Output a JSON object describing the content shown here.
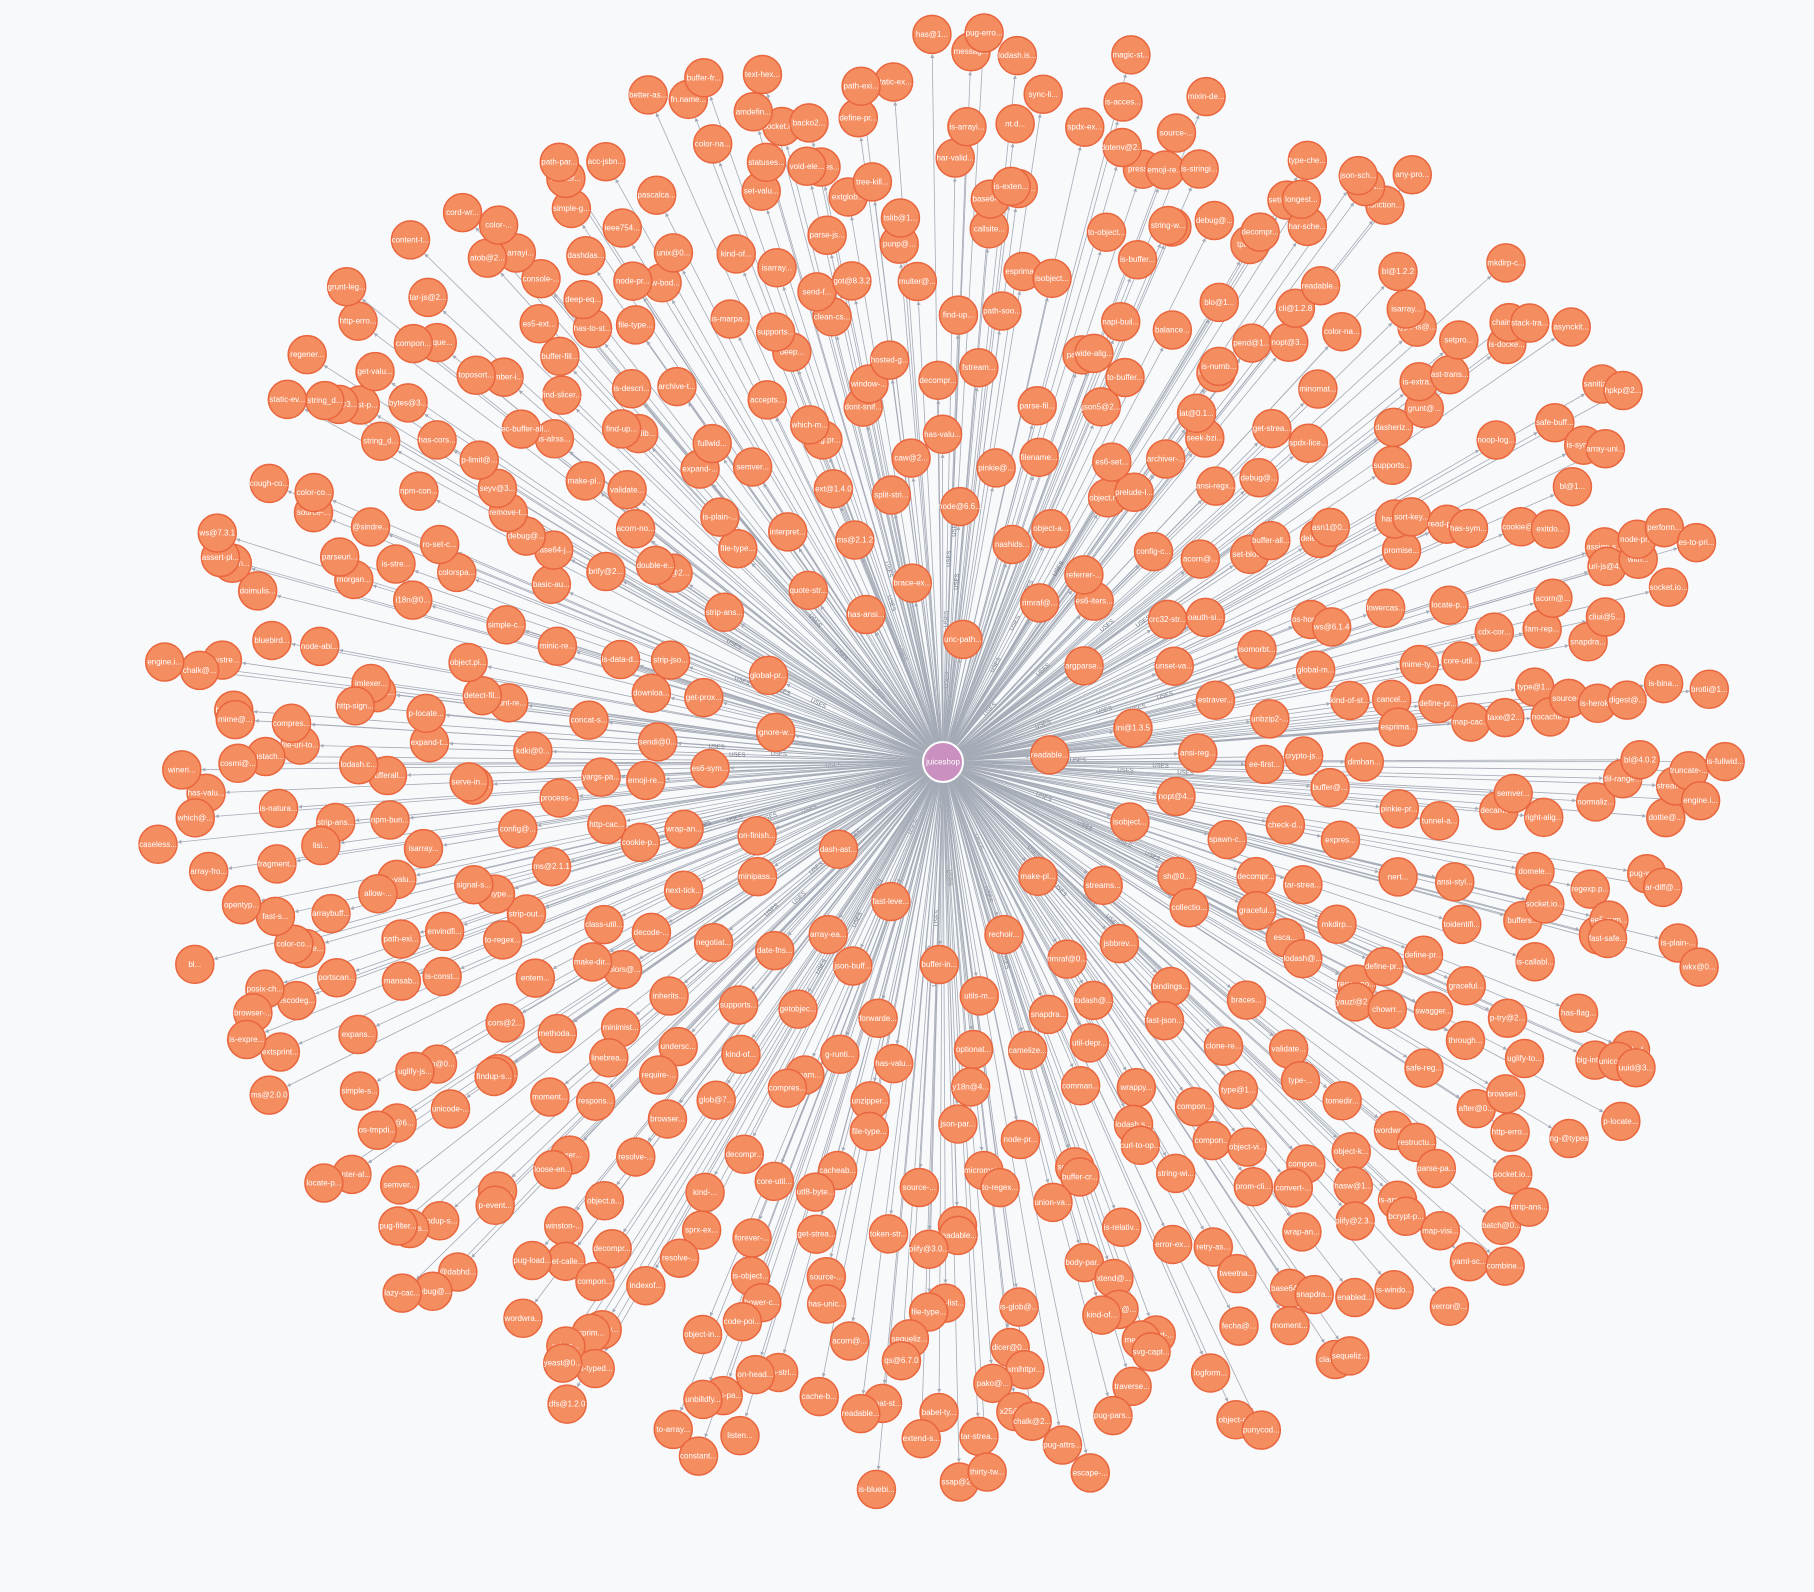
{
  "graph": {
    "root": {
      "label": "juiceshop",
      "color": "#c990c0"
    },
    "node_color": "#f48d60",
    "node_stroke": "#e9663e",
    "edge_color": "#a5abb6",
    "edge_label": "USES",
    "nodes": [
      "readable...",
      "dash-ast...",
      "unc-path...",
      "make-pl...",
      "ignore-w...",
      "argparse...",
      "fast-leve...",
      "has-ansi...",
      "isobject...",
      "on-finish...",
      "rimraf@...",
      "rechoir...",
      "global-pr...",
      "ini@1.3.5",
      "array-ea...",
      "brace-ex...",
      "streams...",
      "es6-sym...",
      "es6-iters...",
      "buffer-in...",
      "quote-str...",
      "nopt@4...",
      "minipass...",
      "nashids...",
      "rimraf@0...",
      "get-prox...",
      "unset-va...",
      "json-buff...",
      "ms@2.1.2",
      "sh@0...",
      "wrap-an...",
      "referrer-...",
      "utils-m...",
      "strip-ans...",
      "ansi-reg...",
      "date-fns...",
      "node@6.6...",
      "jsbbrev...",
      "sendi@0...",
      "crc32-str...",
      "forwarde...",
      "interpret...",
      "spawn-c...",
      "next-tick...",
      "object-a...",
      "snapdra...",
      "strip-jso...",
      "estraver...",
      "getobjec...",
      "split-stri...",
      "collectio...",
      "emoji-re...",
      "config-c...",
      "optionat...",
      "file-type...",
      "ee-first...",
      "negotiat...",
      "pinkie@...",
      "lodash@...",
      "downloa...",
      "oauth-si...",
      "g-runti...",
      "ext@1.4.0",
      "decompr...",
      "cookie-p...",
      "object.m...",
      "camelize...",
      "nan@2...",
      "unbzip2-...",
      "supports...",
      "caw@2...",
      "bindings...",
      "yargs-pa...",
      "acorn@...",
      "has-valu...",
      "is-plain-...",
      "check-d...",
      "decode-...",
      "filename...",
      "util-depr...",
      "is-data-d...",
      "isomorbt...",
      "filenam...",
      "string.pr...",
      "graceful...",
      "http-cac...",
      "prelude-l...",
      "y18n@4...",
      "double-e...",
      "crypto-js...",
      "inherits...",
      "has-valu...",
      "fast-json...",
      "concat-s...",
      "set-bloc...",
      "unzipper...",
      "semver...",
      "tar-strea...",
      "class-util...",
      "es6-set...",
      "comman...",
      "brify@2...",
      "global-m...",
      "kind-of...",
      "dont-snif...",
      "braces...",
      "process-...",
      "ansi-regx...",
      "json-par...",
      "expand-...",
      "buffer@...",
      "colors@...",
      "parse-fil...",
      "wrappy...",
      "minic-re...",
      "os-home...",
      "compres...",
      "which-m...",
      "esca...",
      "ms@2.1.1",
      "archiver-...",
      "node-pr...",
      "acorn-no...",
      "kind-of-st...",
      "undersc...",
      "decompr...",
      "clone-re...",
      "kdki@0...",
      "buffer-all...",
      "file-type...",
      "fullwid...",
      "expres...",
      "make-dir...",
      "json5@2...",
      "lodash.s...",
      "basic-au...",
      "ws@6.1.4",
      "glob@7...",
      "window-...",
      "lodash@...",
      "config@...",
      "seek-bzi...",
      "micromat...",
      "validate...",
      "dimhan...",
      "minimist...",
      "fstream...",
      "compon...",
      "grunt-re...",
      "delegate...",
      "cacheab...",
      "accepts...",
      "mkdirp...",
      "strip-out...",
      "to-buffer...",
      "sort-key...",
      "base64-j...",
      "cancel...",
      "require-...",
      "hosted-g...",
      "validate...",
      "p-finally...",
      "debug@...",
      "source-...",
      "minizlib...",
      "pinkie-pr...",
      "entem...",
      "path-is...",
      "curl-to-op...",
      "simple-c...",
      "lowercas...",
      "decompr...",
      "deep...",
      "regex-no...",
      "file-type...",
      "lat@0.1...",
      "to-regex...",
      "make-pl...",
      "esprima...",
      "linebrea...",
      "find-up...",
      "type@1...",
      "detect-fil...",
      "asn1@0...",
      "utf8-byte...",
      "archive-t...",
      "nert...",
      "to-regex...",
      "wide-alig...",
      "buffer-cr...",
      "debug@...",
      "mime-ty...",
      "browser...",
      "clean-cs...",
      "yauzl@2...",
      "serve-in...",
      "get-strea...",
      "util-dirs...",
      "find-up...",
      "tunnel-a...",
      "methoda...",
      "path-soo...",
      "compon...",
      "object.pi...",
      "promise...",
      "core-util...",
      "supports...",
      "define-pr...",
      "signal-s...",
      "is-acces...",
      "union-va...",
      "remove-t...",
      "define-pr...",
      "respons...",
      "multer@...",
      "type-...",
      "expand-t...",
      "spdx-lice...",
      "token-str...",
      "is-descri...",
      "ansi-styl...",
      "cors@2...",
      "napi-buil...",
      "string-wi...",
      "colorspa...",
      "locate-p...",
      "kind-...",
      "send-f...",
      "chowrr...",
      "isarray...",
      "is-numb...",
      "readable...",
      "is-alrss...",
      "map-cac...",
      "moment...",
      "esprima...",
      "object-vi...",
      "p-locate...",
      "has-s...",
      "get-strea...",
      "is-marpa...",
      "define-pr...",
      "envindfi...",
      "balance...",
      "is-relativ...",
      "seyv@3...",
      "core-util...",
      "resolve-...",
      "got@8.3.2",
      "tomedir...",
      "bufferall...",
      "minomat...",
      "plify@3.0...",
      "find-slicer...",
      "decamel...",
      "cookie-si...",
      "isobject...",
      "prom-cli...",
      "i18n@0...",
      "sort-key...",
      "forever-...",
      "isarray...",
      "swagger...",
      "has-valu...",
      "pend@1...",
      "body-par...",
      "exec-buffer-all...",
      "taxe@2...",
      "Ioxer...",
      "punp@...",
      "compon...",
      "is-realpa...",
      "supports...",
      "source-...",
      "file-type...",
      "toidentifi...",
      "is-const...",
      "is-buffer...",
      "error-ex...",
      "ro-set-c...",
      "cdx-cor...",
      "sprx-ex...",
      "parse-js...",
      "safe-reg...",
      "npm-bun...",
      "nopt@3...",
      "proto-list...",
      "buffer-fill...",
      "semver...",
      "findup-s...",
      "callsite...",
      "convert-...",
      "jmlexer...",
      "read-pkg...",
      "is-object...",
      "raw-bod...",
      "graceful...",
      "path-exi...",
      "blo@1...",
      "xtend@...",
      "p-limit@...",
      "type@1...",
      "object.a...",
      "tslib@1...",
      "object-k...",
      "lodash.c...",
      "dasheriz...",
      "file-type...",
      "has-to-st...",
      "domele...",
      "blob@0...",
      "to-object...",
      "retry-as...",
      "is-stre...",
      "has-sym...",
      "resolve-...",
      "kind-of...",
      "through...",
      "allow-...",
      "cli@1.2.8",
      "is-glob@...",
      "number-i...",
      "nocache...",
      "loose-en...",
      "base64-...",
      "hasw@1...",
      "http-sign...",
      "grunt@...",
      "has-unic...",
      "node-pr...",
      "buffers...",
      "mansab...",
      "use@3...",
      "yargs@...",
      "npm-con...",
      "fam-rep...",
      "decompr...",
      "extglob...",
      "wordwra...",
      "strip-ans...",
      "color-na...",
      "sequeliz...",
      "es5-ext...",
      "right-alig...",
      "unicode-...",
      "isbn@0...",
      "wrap-an...",
      "morgan...",
      "cookie@...",
      "bower-c...",
      "unix@0...",
      "p-try@2...",
      "arraybuff...",
      "tpass...",
      "kind-of...",
      "has-cors...",
      "source-...",
      "winston-...",
      "tree-kill...",
      "restructu...",
      "file-uri-to...",
      "is-extra...",
      "acorn@...",
      "deep-eq...",
      "socket.io...",
      "uglify-js...",
      "string-w...",
      "tweetna...",
      "@sindre...",
      "acorn@...",
      "indexof...",
      "set-valu...",
      "after@0...",
      "lisi...",
      "readable...",
      "dicer@0...",
      "toposort...",
      "normaliz...",
      "source...",
      "is-exten...",
      "plify@2.3...",
      "node-abi...",
      "noop-log...",
      "code-poi...",
      "ieee754...",
      "is-callabl...",
      "portscan...",
      "debug@...",
      "content-...",
      "string_d...",
      "snapdra...",
      "get-calle...",
      "compres...",
      "parse-pa...",
      "is-natura...",
      "type-is@...",
      "qs@6.7.0",
      "console-...",
      "regexp.p...",
      "cliui@6...",
      "press-...",
      "base64-j...",
      "parseuri...",
      "exitdo...",
      "object-in...",
      "statuses...",
      "uglify-to...",
      "copy-de...",
      "decompr...",
      "xmlhttpr...",
      "bytes@3...",
      "is-herok...",
      "p-event...",
      "har-valid...",
      "is-argum...",
      "compres...",
      "ast-trans...",
      "json-stri...",
      "dashdas...",
      "ved...",
      "expans...",
      "emoji-re...",
      "media-t...",
      "source-...",
      "cliui@5...",
      "compon...",
      "void-ele...",
      "browseri...",
      "fragment...",
      "isarray...",
      "pako@...",
      "unique...",
      "tlil-range...",
      "os-tmpdi...",
      "nt.d...",
      "snapdra...",
      "bluebird...",
      "bl@1...",
      "on-head...",
      "pascalca...",
      "has-flag...",
      "color-co...",
      "setimme...",
      "svg-capt...",
      "is-fast-p...",
      "digest@...",
      "pug-load...",
      "define-pr...",
      "bcrypt-p...",
      "mustach...",
      "setpro...",
      "repeat-st...",
      "is-arrayi...",
      "ee5-sym...",
      "simple-s...",
      "dotenv@2...",
      "fecha@...",
      "color-co...",
      "assign-s...",
      "destroy...",
      "socket.io...",
      "http-erro...",
      "fast-s...",
      "har-sche...",
      "x25@0...",
      "compon...",
      "bl@4.0.2",
      "findup-s...",
      "is-arrayi...",
      "enabled...",
      "base@0...",
      "safe-buff...",
      "cache-b...",
      "simple-g...",
      "fast-safe...",
      "escodeg...",
      "is-stringi...",
      "traverse...",
      "color@3...",
      "uri-js@4...",
      "sprim...",
      "backo2...",
      "socket.io...",
      "cosmi@...",
      "bl@1.2.2",
      "babel-ty...",
      "atob@2...",
      "dottie@...",
      "semver...",
      "spdx-ex...",
      "moment...",
      "doimulis...",
      "is-symb...",
      "yargs-pa...",
      "color-na...",
      "big-integ...",
      "posix-ch...",
      "longest...",
      "chalk@2...",
      "get-valu...",
      "is-bina...",
      "@dabhd...",
      "static-ex...",
      "map-visi...",
      "mime@...",
      "is-docke...",
      "readable...",
      "hoister...",
      "pug-wal...",
      "extsprint...",
      "source-...",
      "logform...",
      "cough-co...",
      "with...",
      "uri-pa...",
      "amdefin...",
      "string-@typesc...",
      "opentyp...",
      "function...",
      "tar-strea...",
      "tar-js@2...",
      "stream-b...",
      "extend-s...",
      "sync-li...",
      "is-windo...",
      "lazystre...",
      "array-uni...",
      "unbilldfy...",
      "acc-jsbn...",
      "safer-buf...",
      "browser-...",
      "type-che...",
      "pug-pars...",
      "string_d...",
      "socket.io...",
      "wordwra...",
      "path-exi...",
      "batch@0...",
      "has-valu...",
      "chainsa...",
      "extend-s...",
      "color-...",
      "ar-diff@...",
      "center-al...",
      "is-acces...",
      "clarinet...",
      "is-exten...",
      "node-pr...",
      "is-typed...",
      "fn.name...",
      "unicode-...",
      "array-fro...",
      "pug-link...",
      "pug-attrs...",
      "http-erro...",
      "truncate-...",
      "pug-filter...",
      "messag...",
      "yaml-sc...",
      "chalk@...",
      "stack-tra...",
      "listen...",
      "path-par...",
      "is-plain-...",
      "is-expre...",
      "mixin-de...",
      "object-c...",
      "static-ev...",
      "perform...",
      "yeast@0...",
      "text-hex...",
      "strip-ans...",
      "which@...",
      "mkdirp-c...",
      "ssap@2...",
      "content-t...",
      "engine.i...",
      "locate-p...",
      "lodash.is...",
      "sequeliz...",
      "assert-pl...",
      "sanitize-...",
      "to-array...",
      "better-as...",
      "uuid@3...",
      "bl...",
      "json-sch...",
      "escape-...",
      "regener...",
      "brotli@1...",
      "debug@...",
      "has@1...",
      "combine...",
      "wineri...",
      "asynckit...",
      "is-bluebi...",
      "cord-wr...",
      "wkx@0...",
      "ms@2.0.0",
      "magic-st...",
      "punycod...",
      "ws@7.3.1",
      "es-to-pri...",
      "dfs@1.2.0",
      "buffer-fr...",
      "p-locate...",
      "caseless...",
      "any-pro...",
      "thirty-tw...",
      "grunt-leg...",
      "is-fullwid...",
      "lazy-cac...",
      "pug-erro...",
      "verror@...",
      "engine.i...",
      "hpkp@2...",
      "constant..."
    ]
  }
}
